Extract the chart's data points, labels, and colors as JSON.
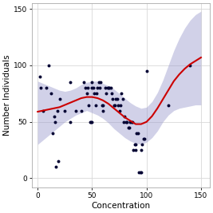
{
  "title": "",
  "xlabel": "Concentration",
  "ylabel": "Number Individuals",
  "xlim": [
    -5,
    158
  ],
  "ylim": [
    -8,
    155
  ],
  "xticks": [
    0,
    50,
    100,
    150
  ],
  "yticks": [
    0,
    50,
    100,
    150
  ],
  "background_color": "#ffffff",
  "grid_color": "#d8d8d8",
  "scatter_color": "#000033",
  "scatter_x": [
    2,
    3,
    5,
    8,
    10,
    12,
    14,
    15,
    16,
    17,
    18,
    19,
    20,
    25,
    30,
    30,
    35,
    40,
    42,
    44,
    45,
    46,
    47,
    48,
    49,
    50,
    50,
    50,
    51,
    52,
    53,
    54,
    55,
    56,
    57,
    58,
    59,
    60,
    60,
    62,
    63,
    64,
    65,
    66,
    67,
    68,
    69,
    70,
    71,
    72,
    73,
    74,
    75,
    76,
    77,
    78,
    79,
    80,
    81,
    82,
    83,
    84,
    85,
    86,
    87,
    88,
    89,
    90,
    90,
    91,
    92,
    93,
    94,
    95,
    95,
    96,
    97,
    98,
    100,
    120,
    140
  ],
  "scatter_y": [
    90,
    80,
    60,
    80,
    100,
    75,
    40,
    55,
    50,
    10,
    60,
    15,
    70,
    60,
    85,
    50,
    60,
    60,
    85,
    80,
    75,
    80,
    65,
    50,
    50,
    80,
    85,
    50,
    80,
    75,
    65,
    75,
    80,
    85,
    80,
    85,
    65,
    65,
    60,
    80,
    75,
    80,
    80,
    80,
    80,
    75,
    70,
    65,
    65,
    70,
    70,
    65,
    60,
    65,
    75,
    70,
    50,
    55,
    50,
    50,
    45,
    45,
    50,
    50,
    50,
    25,
    30,
    25,
    30,
    40,
    40,
    5,
    5,
    5,
    25,
    30,
    35,
    35,
    95,
    65,
    100
  ],
  "smooth_x": [
    0,
    5,
    10,
    15,
    20,
    25,
    30,
    35,
    40,
    45,
    50,
    55,
    60,
    65,
    70,
    75,
    80,
    85,
    90,
    95,
    100,
    105,
    110,
    115,
    120,
    125,
    130,
    135,
    140,
    145,
    150
  ],
  "smooth_y": [
    59,
    60,
    61,
    62,
    63,
    65,
    67,
    69,
    71,
    72,
    72,
    71,
    69,
    66,
    62,
    58,
    54,
    51,
    48,
    48,
    50,
    55,
    62,
    70,
    78,
    86,
    92,
    97,
    101,
    104,
    107
  ],
  "ci_upper": [
    86,
    84,
    82,
    80,
    78,
    77,
    78,
    80,
    83,
    85,
    86,
    86,
    84,
    82,
    79,
    75,
    71,
    67,
    64,
    62,
    63,
    68,
    76,
    87,
    100,
    113,
    124,
    133,
    140,
    145,
    148
  ],
  "ci_lower": [
    30,
    34,
    38,
    42,
    46,
    50,
    53,
    56,
    58,
    60,
    58,
    56,
    53,
    49,
    44,
    40,
    36,
    33,
    31,
    30,
    32,
    36,
    42,
    50,
    56,
    60,
    62,
    63,
    64,
    65,
    65
  ],
  "ci_color": "#9999cc",
  "ci_alpha": 0.45,
  "smooth_color": "#cc0000",
  "smooth_linewidth": 1.5,
  "scatter_size": 8,
  "tick_fontsize": 6.5,
  "label_fontsize": 7.5
}
